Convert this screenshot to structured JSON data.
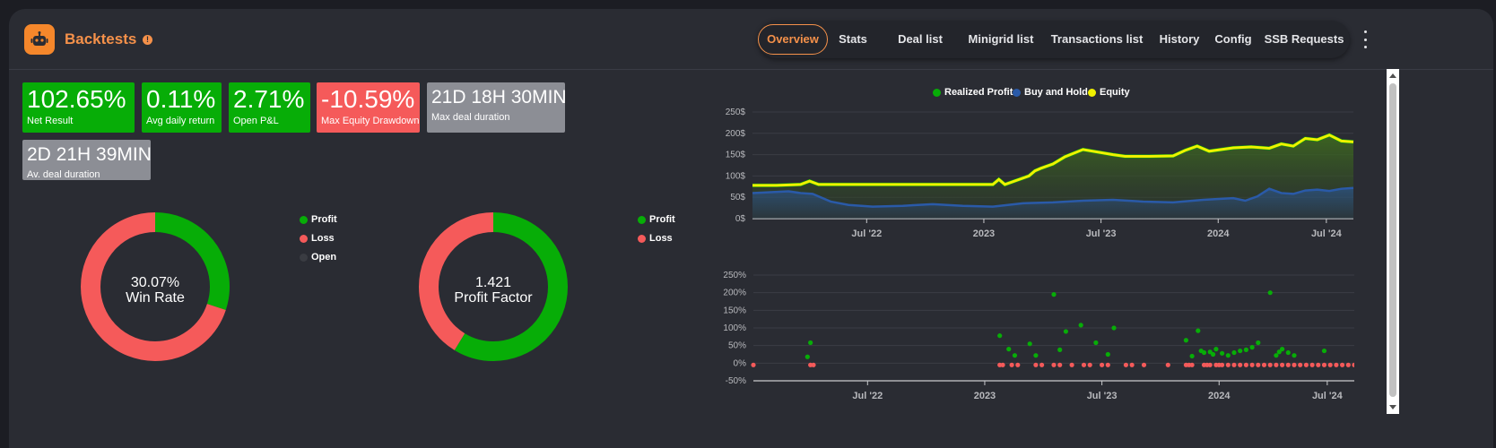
{
  "header": {
    "title": "Backtests",
    "tabs": [
      {
        "label": "Overview",
        "active": true
      },
      {
        "label": "Stats"
      },
      {
        "label": "Deal list"
      },
      {
        "label": "Minigrid list"
      },
      {
        "label": "Transactions list"
      },
      {
        "label": "History"
      },
      {
        "label": "Config"
      },
      {
        "label": "SSB Requests"
      }
    ]
  },
  "metrics": [
    {
      "value": "102.65%",
      "label": "Net Result",
      "color": "#07ad07"
    },
    {
      "value": "0.11%",
      "label": "Avg daily return",
      "color": "#07ad07"
    },
    {
      "value": "2.71%",
      "label": "Open P&L",
      "color": "#07ad07"
    },
    {
      "value": "-10.59%",
      "label": "Max Equity Drawdown",
      "color": "#f55a5a"
    },
    {
      "value": "21D 18H 30MIN",
      "label": "Max deal duration",
      "color": "#8c8e95"
    },
    {
      "value": "2D 21H 39MIN",
      "label": "Av. deal duration",
      "color": "#8c8e95"
    }
  ],
  "donuts": [
    {
      "value": "30.07%",
      "label": "Win Rate",
      "slices": [
        {
          "name": "Profit",
          "value": 30.07,
          "color": "#07ad07"
        },
        {
          "name": "Loss",
          "value": 69.93,
          "color": "#f55a5a"
        }
      ],
      "legend": [
        {
          "name": "Profit",
          "color": "#07ad07"
        },
        {
          "name": "Loss",
          "color": "#f55a5a"
        },
        {
          "name": "Open",
          "color": "#3a3c42"
        }
      ]
    },
    {
      "value": "1.421",
      "label": "Profit Factor",
      "slices": [
        {
          "name": "Profit",
          "value": 58.7,
          "color": "#07ad07"
        },
        {
          "name": "Loss",
          "value": 41.3,
          "color": "#f55a5a"
        }
      ],
      "legend": [
        {
          "name": "Profit",
          "color": "#07ad07"
        },
        {
          "name": "Loss",
          "color": "#f55a5a"
        }
      ]
    }
  ],
  "chart_data": [
    {
      "type": "area",
      "legend_position": "top",
      "legend": [
        {
          "name": "Realized Profit",
          "color": "#07ad07"
        },
        {
          "name": "Buy and Hold",
          "color": "#2a5aa8"
        },
        {
          "name": "Equity",
          "color": "#f0f000"
        }
      ],
      "x_ticks": [
        "Jul '22",
        "2023",
        "Jul '23",
        "2024",
        "Jul '24"
      ],
      "x_tick_pos": [
        0.19,
        0.385,
        0.58,
        0.775,
        0.955
      ],
      "y_ticks": [
        "250$",
        "200$",
        "150$",
        "100$",
        "50$",
        "0$"
      ],
      "ylim": [
        0,
        250
      ],
      "series": [
        {
          "name": "Equity",
          "color": "#f0f000",
          "x": [
            0,
            0.04,
            0.08,
            0.095,
            0.11,
            0.4,
            0.41,
            0.42,
            0.46,
            0.47,
            0.48,
            0.5,
            0.52,
            0.55,
            0.6,
            0.62,
            0.66,
            0.7,
            0.72,
            0.74,
            0.76,
            0.8,
            0.83,
            0.86,
            0.88,
            0.9,
            0.92,
            0.94,
            0.96,
            0.98,
            1.0
          ],
          "y": [
            78,
            78,
            80,
            88,
            80,
            80,
            92,
            80,
            100,
            112,
            118,
            128,
            145,
            162,
            150,
            146,
            146,
            147,
            160,
            170,
            158,
            166,
            168,
            165,
            175,
            170,
            188,
            185,
            196,
            182,
            180
          ]
        },
        {
          "name": "Buy and Hold",
          "color": "#2a5aa8",
          "x": [
            0,
            0.03,
            0.06,
            0.08,
            0.1,
            0.13,
            0.16,
            0.2,
            0.25,
            0.3,
            0.35,
            0.4,
            0.45,
            0.5,
            0.55,
            0.6,
            0.65,
            0.7,
            0.75,
            0.8,
            0.82,
            0.84,
            0.86,
            0.88,
            0.9,
            0.92,
            0.94,
            0.96,
            0.98,
            1.0
          ],
          "y": [
            60,
            62,
            64,
            60,
            58,
            40,
            32,
            28,
            30,
            34,
            30,
            28,
            36,
            38,
            42,
            44,
            40,
            38,
            44,
            48,
            42,
            52,
            70,
            60,
            58,
            66,
            68,
            65,
            70,
            72
          ]
        }
      ]
    },
    {
      "type": "scatter",
      "x_ticks": [
        "Jul '22",
        "2023",
        "Jul '23",
        "2024",
        "Jul '24"
      ],
      "x_tick_pos": [
        0.19,
        0.385,
        0.58,
        0.775,
        0.955
      ],
      "y_ticks": [
        "250%",
        "200%",
        "150%",
        "100%",
        "50%",
        "0%",
        "-50%"
      ],
      "ylim": [
        -50,
        250
      ],
      "series": [
        {
          "name": "Profit",
          "color": "#07ad07",
          "x": [
            0.09,
            0.095,
            0.41,
            0.425,
            0.435,
            0.46,
            0.47,
            0.5,
            0.51,
            0.52,
            0.545,
            0.57,
            0.59,
            0.6,
            0.72,
            0.73,
            0.74,
            0.745,
            0.75,
            0.76,
            0.765,
            0.77,
            0.78,
            0.79,
            0.8,
            0.81,
            0.82,
            0.83,
            0.84,
            0.86,
            0.87,
            0.875,
            0.88,
            0.89,
            0.9,
            0.95
          ],
          "y": [
            18,
            58,
            78,
            40,
            22,
            55,
            22,
            195,
            38,
            90,
            108,
            58,
            25,
            100,
            65,
            20,
            92,
            35,
            30,
            32,
            25,
            40,
            28,
            22,
            30,
            35,
            38,
            45,
            58,
            200,
            22,
            32,
            40,
            30,
            22,
            35
          ]
        },
        {
          "name": "Loss",
          "color": "#f55a5a",
          "x": [
            0,
            0.095,
            0.1,
            0.41,
            0.415,
            0.43,
            0.44,
            0.47,
            0.48,
            0.5,
            0.51,
            0.53,
            0.55,
            0.56,
            0.58,
            0.59,
            0.62,
            0.63,
            0.65,
            0.69,
            0.72,
            0.725,
            0.73,
            0.75,
            0.755,
            0.76,
            0.77,
            0.775,
            0.78,
            0.79,
            0.8,
            0.81,
            0.82,
            0.83,
            0.84,
            0.85,
            0.86,
            0.87,
            0.88,
            0.89,
            0.9,
            0.91,
            0.92,
            0.93,
            0.94,
            0.95,
            0.96,
            0.97,
            0.98,
            0.99,
            1.0
          ],
          "y": [
            -5,
            -5,
            -5,
            -5,
            -5,
            -5,
            -5,
            -5,
            -5,
            -5,
            -5,
            -5,
            -5,
            -5,
            -5,
            -5,
            -5,
            -5,
            -5,
            -5,
            -5,
            -5,
            -5,
            -5,
            -5,
            -5,
            -5,
            -5,
            -5,
            -5,
            -5,
            -5,
            -5,
            -5,
            -5,
            -5,
            -5,
            -5,
            -5,
            -5,
            -5,
            -5,
            -5,
            -5,
            -5,
            -5,
            -5,
            -5,
            -5,
            -5,
            -5
          ]
        }
      ]
    }
  ]
}
